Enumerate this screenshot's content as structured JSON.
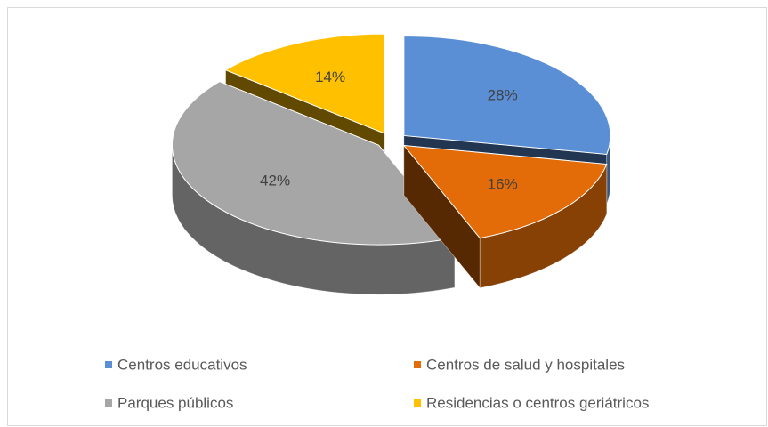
{
  "chart_data": {
    "type": "pie3d",
    "categories": [
      "Centros educativos",
      "Centros de salud y hospitales",
      "Parques públicos",
      "Residencias o centros geriátricos"
    ],
    "values": [
      28,
      16,
      42,
      14
    ],
    "value_labels": [
      "28%",
      "16%",
      "42%",
      "14%"
    ],
    "colors": [
      "#5a8fd6",
      "#e36c09",
      "#a6a6a6",
      "#ffc000"
    ],
    "legend": "bottom"
  }
}
